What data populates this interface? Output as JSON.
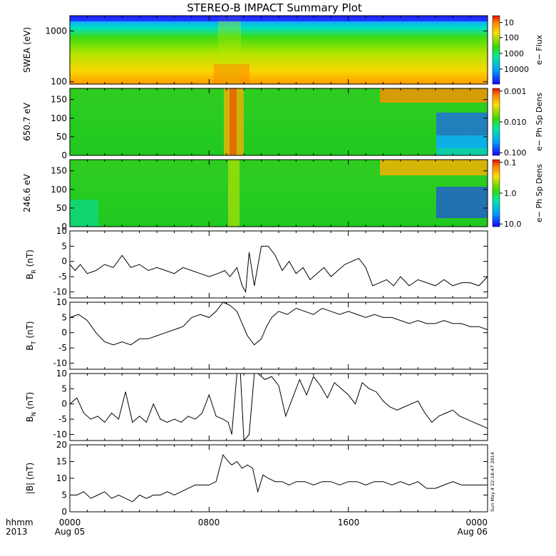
{
  "title": "STEREO-B IMPACT Summary Plot",
  "stamp": "Sun May  4 22:18:47 2014",
  "footer": {
    "fmt_label": "hhmm",
    "year_label": "2013",
    "x_ticks": [
      "0000",
      "0800",
      "1600",
      "0000"
    ],
    "date_labels": {
      "start": "Aug 05",
      "end": "Aug 06"
    }
  },
  "chart_data": [
    {
      "type": "heatmap",
      "ylabel": "SWEA (eV)",
      "yscale": "log",
      "ylim": [
        90,
        2000
      ],
      "yticks": [
        "1000",
        "100"
      ],
      "colorbar_label": "e− Flux",
      "colorbar_ticks": [
        "10000",
        "1000",
        "100",
        "10"
      ],
      "xlim": [
        0,
        24
      ]
    },
    {
      "type": "heatmap",
      "ylabel": "650.7 eV",
      "ylim": [
        0,
        180
      ],
      "yticks": [
        "150",
        "100",
        "50",
        "0"
      ],
      "colorbar_label": "e− Ph Sp Dens",
      "colorbar_ticks": [
        "0.100",
        "0.010",
        "0.001"
      ],
      "xlim": [
        0,
        24
      ]
    },
    {
      "type": "heatmap",
      "ylabel": "246.6 eV",
      "ylim": [
        0,
        180
      ],
      "yticks": [
        "150",
        "100",
        "50",
        "0"
      ],
      "colorbar_label": "e− Ph Sp Dens",
      "colorbar_ticks": [
        "10.0",
        "1.0",
        "0.1"
      ],
      "xlim": [
        0,
        24
      ]
    },
    {
      "type": "line",
      "ylabel": "B_R (nT)",
      "ylim": [
        -12,
        10
      ],
      "yticks": [
        "10",
        "5",
        "0",
        "-5",
        "-10"
      ],
      "xlim": [
        0,
        24
      ],
      "x": [
        0,
        0.3,
        0.6,
        1.0,
        1.5,
        2.0,
        2.5,
        3.0,
        3.5,
        4.0,
        4.5,
        5.0,
        5.5,
        6.0,
        6.5,
        7.0,
        7.5,
        8.0,
        8.5,
        8.9,
        9.2,
        9.6,
        9.9,
        10.1,
        10.3,
        10.6,
        11.0,
        11.4,
        11.8,
        12.2,
        12.6,
        13.0,
        13.4,
        13.8,
        14.2,
        14.6,
        15.0,
        15.4,
        15.8,
        16.2,
        16.6,
        17.0,
        17.4,
        17.8,
        18.2,
        18.6,
        19.0,
        19.5,
        20.0,
        20.5,
        21.0,
        21.5,
        22.0,
        22.5,
        23.0,
        23.5,
        24.0
      ],
      "y": [
        -1,
        -3,
        -1,
        -4,
        -3,
        -1,
        -2,
        2,
        -2,
        -1,
        -3,
        -2,
        -3,
        -4,
        -2,
        -3,
        -4,
        -5,
        -4,
        -3,
        -5,
        -2,
        -8,
        -10,
        3,
        -8,
        5,
        5,
        2,
        -3,
        0,
        -4,
        -2,
        -6,
        -4,
        -2,
        -5,
        -3,
        -1,
        0,
        1,
        -2,
        -8,
        -7,
        -6,
        -8,
        -5,
        -8,
        -6,
        -7,
        -8,
        -6,
        -8,
        -7,
        -7,
        -8,
        -5
      ]
    },
    {
      "type": "line",
      "ylabel": "B_T (nT)",
      "ylim": [
        -12,
        10
      ],
      "yticks": [
        "10",
        "5",
        "0",
        "-5",
        "-10"
      ],
      "xlim": [
        0,
        24
      ],
      "x": [
        0,
        0.5,
        1.0,
        1.5,
        2.0,
        2.5,
        3.0,
        3.5,
        4.0,
        4.5,
        5.0,
        5.5,
        6.0,
        6.5,
        7.0,
        7.5,
        8.0,
        8.4,
        8.8,
        9.2,
        9.6,
        9.9,
        10.2,
        10.6,
        11.0,
        11.3,
        11.6,
        12.0,
        12.5,
        13.0,
        13.5,
        14.0,
        14.5,
        15.0,
        15.5,
        16.0,
        16.5,
        17.0,
        17.5,
        18.0,
        18.5,
        19.0,
        19.5,
        20.0,
        20.5,
        21.0,
        21.5,
        22.0,
        22.5,
        23.0,
        23.5,
        24.0
      ],
      "y": [
        5,
        6,
        4,
        0,
        -3,
        -4,
        -3,
        -4,
        -2,
        -2,
        -1,
        0,
        1,
        2,
        5,
        6,
        5,
        7,
        10,
        9,
        7,
        3,
        -1,
        -4,
        -2,
        2,
        5,
        7,
        6,
        8,
        7,
        6,
        8,
        7,
        6,
        7,
        6,
        5,
        6,
        5,
        5,
        4,
        3,
        4,
        3,
        3,
        4,
        3,
        3,
        2,
        2,
        1
      ]
    },
    {
      "type": "line",
      "ylabel": "B_N (nT)",
      "ylim": [
        -12,
        10
      ],
      "yticks": [
        "10",
        "5",
        "0",
        "-5",
        "-10"
      ],
      "xlim": [
        0,
        24
      ],
      "x": [
        0,
        0.4,
        0.8,
        1.2,
        1.6,
        2.0,
        2.4,
        2.8,
        3.2,
        3.6,
        4.0,
        4.4,
        4.8,
        5.2,
        5.6,
        6.0,
        6.4,
        6.8,
        7.2,
        7.6,
        8.0,
        8.4,
        8.8,
        9.1,
        9.3,
        9.6,
        9.8,
        10.0,
        10.3,
        10.6,
        10.8,
        11.2,
        11.6,
        12.0,
        12.4,
        12.8,
        13.2,
        13.6,
        14.0,
        14.4,
        14.8,
        15.2,
        15.6,
        16.0,
        16.4,
        16.8,
        17.2,
        17.6,
        18.0,
        18.4,
        18.8,
        19.2,
        19.6,
        20.0,
        20.4,
        20.8,
        21.2,
        21.6,
        22.0,
        22.4,
        22.8,
        23.2,
        23.6,
        24.0
      ],
      "y": [
        0,
        2,
        -3,
        -5,
        -4,
        -6,
        -3,
        -5,
        4,
        -6,
        -4,
        -6,
        0,
        -5,
        -6,
        -5,
        -6,
        -4,
        -5,
        -3,
        3,
        -4,
        -5,
        -6,
        -10,
        10,
        10,
        -12,
        -10,
        10,
        10,
        8,
        9,
        6,
        -4,
        2,
        8,
        3,
        9,
        6,
        2,
        7,
        5,
        3,
        0,
        7,
        5,
        4,
        1,
        -1,
        -2,
        -1,
        0,
        1,
        -3,
        -6,
        -4,
        -3,
        -2,
        -4,
        -5,
        -6,
        -7,
        -8
      ]
    },
    {
      "type": "line",
      "ylabel": "|B| (nT)",
      "ylim": [
        0,
        20
      ],
      "yticks": [
        "20",
        "15",
        "10",
        "5",
        "0"
      ],
      "xlim": [
        0,
        24
      ],
      "x": [
        0,
        0.4,
        0.8,
        1.2,
        1.6,
        2.0,
        2.4,
        2.8,
        3.2,
        3.6,
        4.0,
        4.4,
        4.8,
        5.2,
        5.6,
        6.0,
        6.4,
        6.8,
        7.2,
        7.6,
        8.0,
        8.4,
        8.8,
        9.1,
        9.3,
        9.6,
        9.9,
        10.2,
        10.5,
        10.8,
        11.1,
        11.4,
        11.8,
        12.2,
        12.6,
        13.0,
        13.5,
        14.0,
        14.5,
        15.0,
        15.5,
        16.0,
        16.5,
        17.0,
        17.5,
        18.0,
        18.5,
        19.0,
        19.5,
        20.0,
        20.5,
        21.0,
        21.5,
        22.0,
        22.5,
        23.0,
        23.5,
        24.0
      ],
      "y": [
        5,
        5,
        6,
        4,
        5,
        6,
        4,
        5,
        4,
        3,
        5,
        4,
        5,
        5,
        6,
        5,
        6,
        7,
        8,
        8,
        8,
        9,
        17,
        15,
        14,
        15,
        13,
        14,
        13,
        6,
        11,
        10,
        9,
        9,
        8,
        9,
        9,
        8,
        9,
        9,
        8,
        9,
        9,
        8,
        9,
        9,
        8,
        9,
        8,
        9,
        7,
        7,
        8,
        9,
        8,
        8,
        8,
        8
      ]
    }
  ],
  "colors": {
    "axis": "#000000",
    "line": "#000000",
    "background": "#ffffff"
  }
}
